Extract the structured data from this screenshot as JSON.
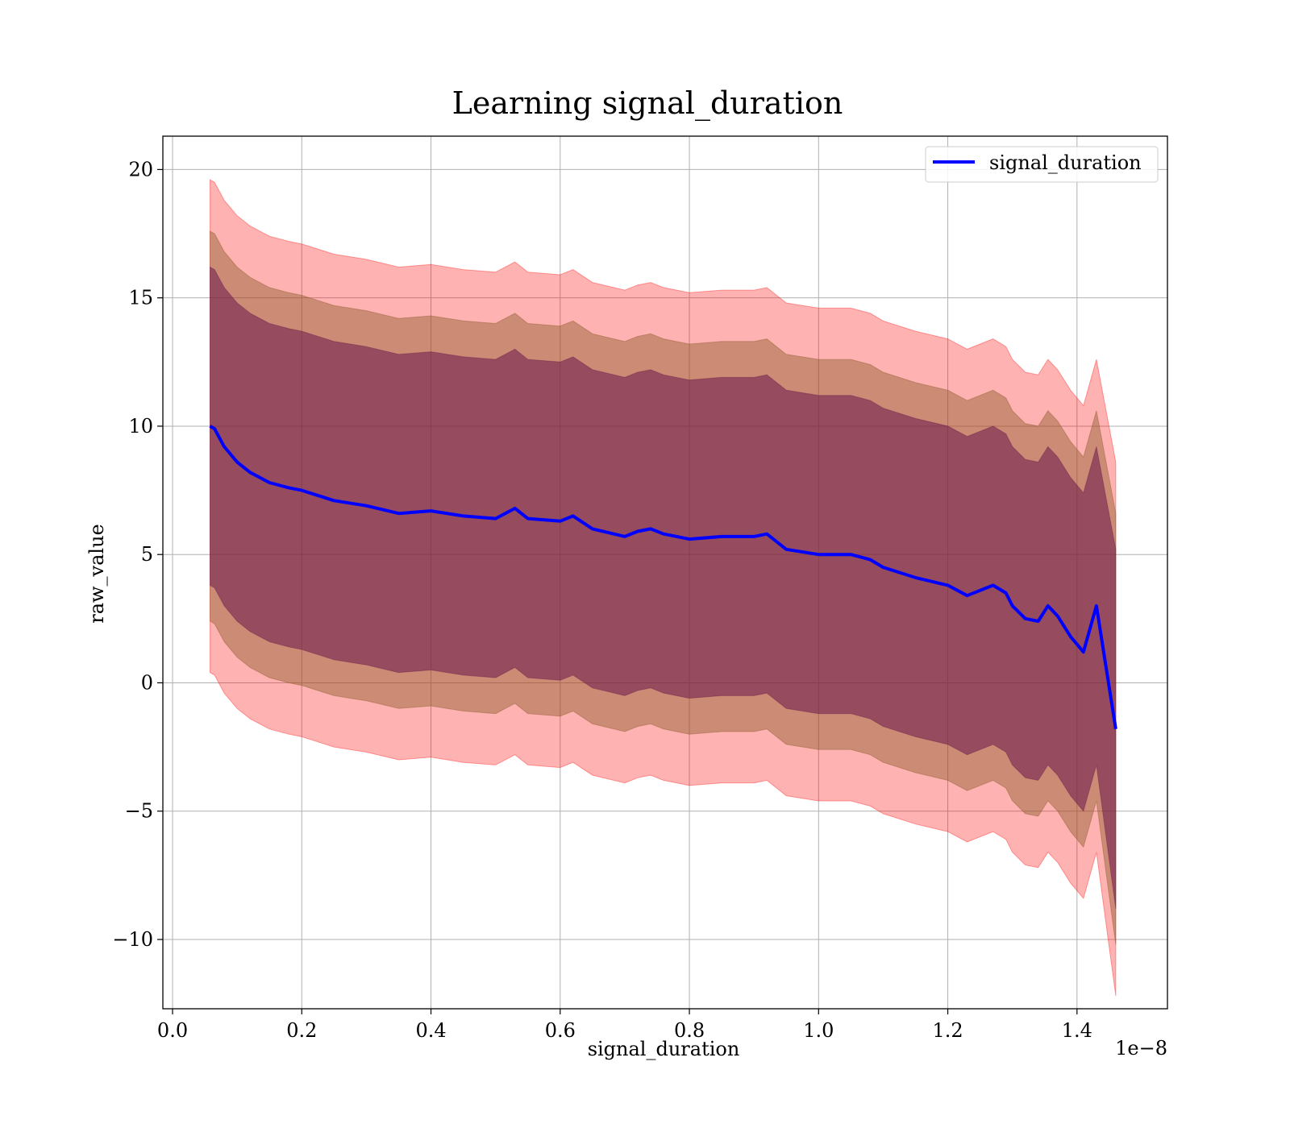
{
  "chart_data": {
    "type": "line",
    "title": "Learning signal_duration",
    "xlabel": "signal_duration",
    "ylabel": "raw_value",
    "x_offset_text": "1e−8",
    "xlim": [
      -0.015,
      1.54
    ],
    "ylim": [
      -12.7,
      21.3
    ],
    "x_ticks": [
      0.0,
      0.2,
      0.4,
      0.6,
      0.8,
      1.0,
      1.2,
      1.4
    ],
    "x_tick_labels": [
      "0.0",
      "0.2",
      "0.4",
      "0.6",
      "0.8",
      "1.0",
      "1.2",
      "1.4"
    ],
    "y_ticks": [
      -10,
      -5,
      0,
      5,
      10,
      15,
      20
    ],
    "y_tick_labels": [
      "−10",
      "−5",
      "0",
      "5",
      "10",
      "15",
      "20"
    ],
    "grid": true,
    "legend_position": "top-right",
    "colors": {
      "line": "#0000ff",
      "band_outer": "#ff0000",
      "band_middle": "#8b5a2b",
      "band_inner": "#6b1a4a"
    },
    "x": [
      0.058,
      0.065,
      0.08,
      0.1,
      0.12,
      0.15,
      0.18,
      0.2,
      0.25,
      0.3,
      0.35,
      0.4,
      0.45,
      0.5,
      0.53,
      0.55,
      0.6,
      0.62,
      0.65,
      0.7,
      0.72,
      0.74,
      0.76,
      0.8,
      0.85,
      0.9,
      0.92,
      0.95,
      1.0,
      1.02,
      1.05,
      1.08,
      1.1,
      1.15,
      1.2,
      1.23,
      1.27,
      1.29,
      1.3,
      1.32,
      1.34,
      1.355,
      1.37,
      1.39,
      1.41,
      1.43,
      1.46
    ],
    "series": [
      {
        "name": "signal_duration",
        "values": [
          10.0,
          9.9,
          9.2,
          8.6,
          8.2,
          7.8,
          7.6,
          7.5,
          7.1,
          6.9,
          6.6,
          6.7,
          6.5,
          6.4,
          6.8,
          6.4,
          6.3,
          6.5,
          6.0,
          5.7,
          5.9,
          6.0,
          5.8,
          5.6,
          5.7,
          5.7,
          5.8,
          5.2,
          5.0,
          5.0,
          5.0,
          4.8,
          4.5,
          4.1,
          3.8,
          3.4,
          3.8,
          3.5,
          3.0,
          2.5,
          2.4,
          3.0,
          2.6,
          1.8,
          1.2,
          3.0,
          -1.8
        ],
        "band_outer_halfwidth": 9.6,
        "band_middle_halfwidth": 7.6,
        "band_inner_halfwidth": 6.2,
        "band_widening": [
          0,
          0,
          0,
          0,
          0,
          0,
          0,
          0,
          0,
          0,
          0,
          0,
          0,
          0,
          0,
          0,
          0,
          0,
          0,
          0,
          0,
          0,
          0,
          0,
          0,
          0,
          0,
          0,
          0,
          0,
          0,
          0,
          0,
          0,
          0,
          0,
          0,
          0,
          0,
          0,
          0,
          0,
          0,
          0,
          0,
          0,
          0
        ]
      }
    ]
  }
}
